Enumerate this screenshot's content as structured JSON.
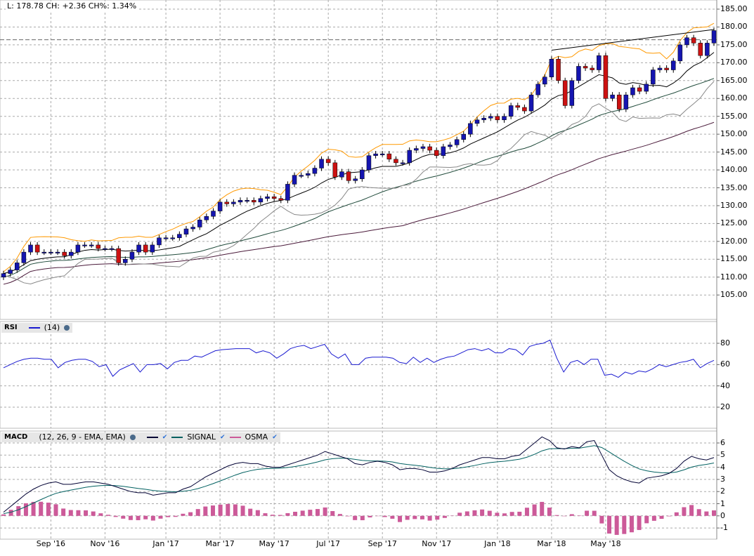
{
  "header": {
    "last": "L: 178.78",
    "change": "CH: +2.36",
    "change_pct": "CH%: 1.34%"
  },
  "rsi_legend": {
    "name": "RSI",
    "params": "(14)"
  },
  "macd_legend": {
    "name": "MACD",
    "params": "(12, 26, 9 - EMA, EMA)",
    "signal": "SIGNAL",
    "osma": "OSMA"
  },
  "colors": {
    "up": "#1515b0",
    "down": "#cc1111",
    "upper_band": "#ff9900",
    "lower_band": "#888888",
    "ma_fast": "#000000",
    "ma_mid": "#1f4a3a",
    "ma_slow": "#4a1a3a",
    "rsi": "#1a1ad0",
    "macd": "#000033",
    "signal": "#006060",
    "osma": "#cc5a99"
  },
  "chart_data": [
    {
      "type": "candlestick",
      "title": "Price",
      "y_ticks": [
        "185.00",
        "180.00",
        "175.00",
        "170.00",
        "165.00",
        "160.00",
        "155.00",
        "150.00",
        "145.00",
        "140.00",
        "135.00",
        "130.00",
        "125.00",
        "120.00",
        "115.00",
        "110.00",
        "105.00"
      ],
      "ylim": [
        100,
        186
      ],
      "x_labels": [
        "Sep '16",
        "Nov '16",
        "Jan '17",
        "Mar '17",
        "May '17",
        "Jul '17",
        "Sep '17",
        "Nov '17",
        "Jan '18",
        "Mar '18",
        "May '18"
      ],
      "x_label_index": [
        7,
        15,
        24,
        32,
        40,
        48,
        56,
        64,
        73,
        81,
        89
      ],
      "close": [
        111,
        112,
        114,
        117,
        119,
        117,
        117,
        117,
        117,
        116,
        117,
        119,
        119,
        119,
        118,
        118,
        118,
        114,
        115,
        117,
        119,
        117,
        119,
        121,
        121,
        121,
        122,
        123.5,
        124,
        126,
        127,
        128.5,
        131,
        130.5,
        131,
        131.5,
        131.5,
        131,
        132,
        132.5,
        132,
        131.5,
        136,
        138.5,
        138.5,
        139,
        140.5,
        143,
        142,
        138,
        139.5,
        137,
        137.5,
        140,
        144,
        144.5,
        144.5,
        143,
        142,
        142,
        145.5,
        146,
        146.5,
        145.5,
        144,
        146.5,
        147,
        148.5,
        150,
        153,
        154,
        154.5,
        155,
        154,
        155,
        158,
        157.5,
        156.5,
        161,
        164,
        166,
        171,
        165,
        158,
        165,
        169,
        168.5,
        168,
        172,
        160,
        161,
        157,
        161,
        163,
        162,
        164,
        168,
        168.5,
        168,
        170.5,
        175,
        177,
        175.5,
        172,
        175.5,
        179
      ],
      "prev_close_line": 176.42,
      "trendline": {
        "from": [
          81,
          173.5
        ],
        "to": [
          105,
          179.3
        ]
      }
    },
    {
      "type": "line",
      "title": "RSI",
      "params": "(14)",
      "ylim": [
        0,
        100
      ],
      "y_ticks": [
        "80",
        "60",
        "40",
        "20"
      ],
      "values": [
        57,
        60,
        63,
        65,
        66,
        66,
        65,
        65,
        57,
        62,
        64,
        65,
        65,
        63,
        58,
        60,
        49,
        55,
        58,
        61,
        53,
        60,
        60,
        61,
        56,
        62,
        64,
        64,
        68,
        67,
        70,
        73,
        74,
        74.5,
        75,
        75,
        75,
        71,
        73,
        71,
        66,
        70,
        75,
        77,
        78,
        75,
        77,
        79,
        70,
        66,
        70,
        60,
        60,
        66,
        67,
        67,
        67,
        66,
        62,
        61,
        67,
        62,
        66,
        62,
        65,
        67,
        68,
        71,
        74,
        75,
        73,
        75,
        71,
        71,
        75,
        74,
        69,
        77,
        79,
        80,
        83,
        66,
        53,
        62,
        64,
        60,
        65,
        65,
        50,
        51,
        48,
        53,
        51,
        54,
        53,
        56,
        60,
        58,
        60,
        62,
        63,
        65,
        57,
        61,
        64
      ]
    },
    {
      "type": "line",
      "title": "MACD",
      "params": "(12, 26, 9 - EMA, EMA)",
      "ylim": [
        -1.8,
        6.8
      ],
      "y_ticks": [
        "6",
        "5",
        "4",
        "3",
        "2",
        "1",
        "0",
        "-1"
      ],
      "macd": [
        0.3,
        0.8,
        1.3,
        1.8,
        2.2,
        2.5,
        2.7,
        2.8,
        2.6,
        2.6,
        2.7,
        2.8,
        2.8,
        2.7,
        2.6,
        2.4,
        2.2,
        2.0,
        1.9,
        1.9,
        1.7,
        1.8,
        1.9,
        1.9,
        2.2,
        2.4,
        2.8,
        3.2,
        3.5,
        3.8,
        4.1,
        4.3,
        4.4,
        4.3,
        4.3,
        4.1,
        4.0,
        4.0,
        4.2,
        4.4,
        4.6,
        4.8,
        5.0,
        5.3,
        5.1,
        4.9,
        4.7,
        4.3,
        4.2,
        4.4,
        4.5,
        4.4,
        4.2,
        3.8,
        3.9,
        3.9,
        3.8,
        3.6,
        3.6,
        3.7,
        3.9,
        4.2,
        4.4,
        4.6,
        4.8,
        4.8,
        4.7,
        4.7,
        4.9,
        5.0,
        5.5,
        6.0,
        6.5,
        6.2,
        5.6,
        5.5,
        5.7,
        5.6,
        6.1,
        6.2,
        5.0,
        3.8,
        3.3,
        3.0,
        2.8,
        2.7,
        3.1,
        3.2,
        3.3,
        3.5,
        3.9,
        4.5,
        4.9,
        4.7,
        4.6,
        4.8
      ]
    }
  ]
}
